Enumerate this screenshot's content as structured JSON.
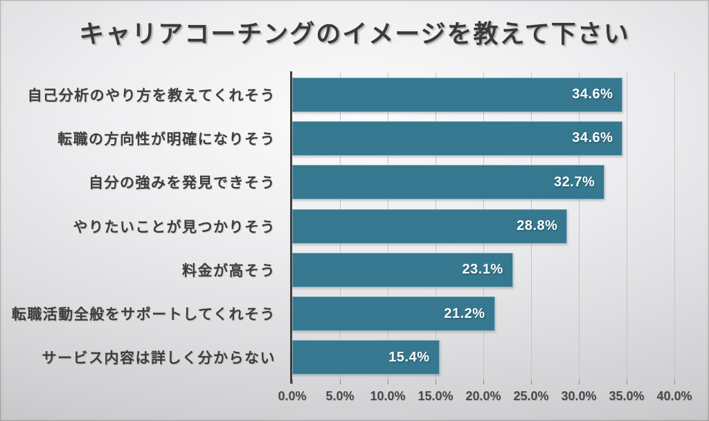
{
  "title": "キャリアコーチングのイメージを教えて下さい",
  "colors": {
    "bar": "#36788f",
    "bar_value_label": "#ffffff",
    "axis_line": "#3f3f41",
    "gridline": "#c4c4c7",
    "label_text": "#3d3d3d",
    "background_center": "#fbfbfc",
    "background_edge": "#bbbbbd"
  },
  "chart_data": {
    "type": "bar",
    "orientation": "horizontal",
    "title": "キャリアコーチングのイメージを教えて下さい",
    "categories": [
      "自己分析のやり方を教えてくれそう",
      "転職の方向性が明確になりそう",
      "自分の強みを発見できそう",
      "やりたいことが見つかりそう",
      "料金が高そう",
      "転職活動全般をサポートしてくれそう",
      "サービス内容は詳しく分からない"
    ],
    "values": [
      34.6,
      34.6,
      32.7,
      28.8,
      23.1,
      21.2,
      15.4
    ],
    "value_labels": [
      "34.6%",
      "34.6%",
      "32.7%",
      "28.8%",
      "23.1%",
      "21.2%",
      "15.4%"
    ],
    "xlabel": "",
    "ylabel": "",
    "xlim": [
      0,
      40
    ],
    "x_tick_step": 5,
    "x_ticks": [
      "0.0%",
      "5.0%",
      "10.0%",
      "15.0%",
      "20.0%",
      "25.0%",
      "30.0%",
      "35.0%",
      "40.0%"
    ],
    "grid": true,
    "legend": false,
    "value_label_position": "inside-end"
  }
}
